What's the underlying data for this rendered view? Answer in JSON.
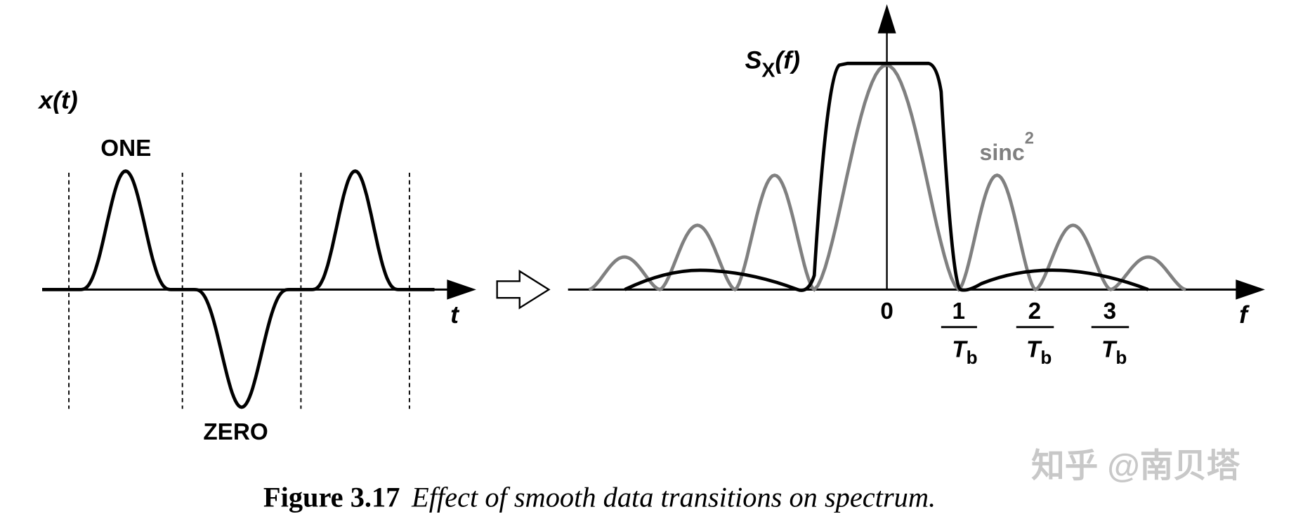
{
  "left_panel": {
    "y_label": "x(t)",
    "x_label": "t",
    "pulse_labels": {
      "one": "ONE",
      "zero": "ZERO"
    }
  },
  "right_panel": {
    "y_label_main": "S",
    "y_label_sub": "X",
    "y_label_arg": "(f)",
    "x_label": "f",
    "sinc_label": "sinc",
    "sinc_exp": "2",
    "ticks": [
      {
        "num": "0"
      },
      {
        "num": "1",
        "den": "T",
        "den_sub": "b"
      },
      {
        "num": "2",
        "den": "T",
        "den_sub": "b"
      },
      {
        "num": "3",
        "den": "T",
        "den_sub": "b"
      }
    ]
  },
  "caption": {
    "label": "Figure 3.17",
    "text": "Effect of smooth data transitions on spectrum."
  },
  "watermark": "知乎 @南贝塔",
  "colors": {
    "black": "#000000",
    "gray": "#808080",
    "watermark": "#c8c8c8"
  }
}
